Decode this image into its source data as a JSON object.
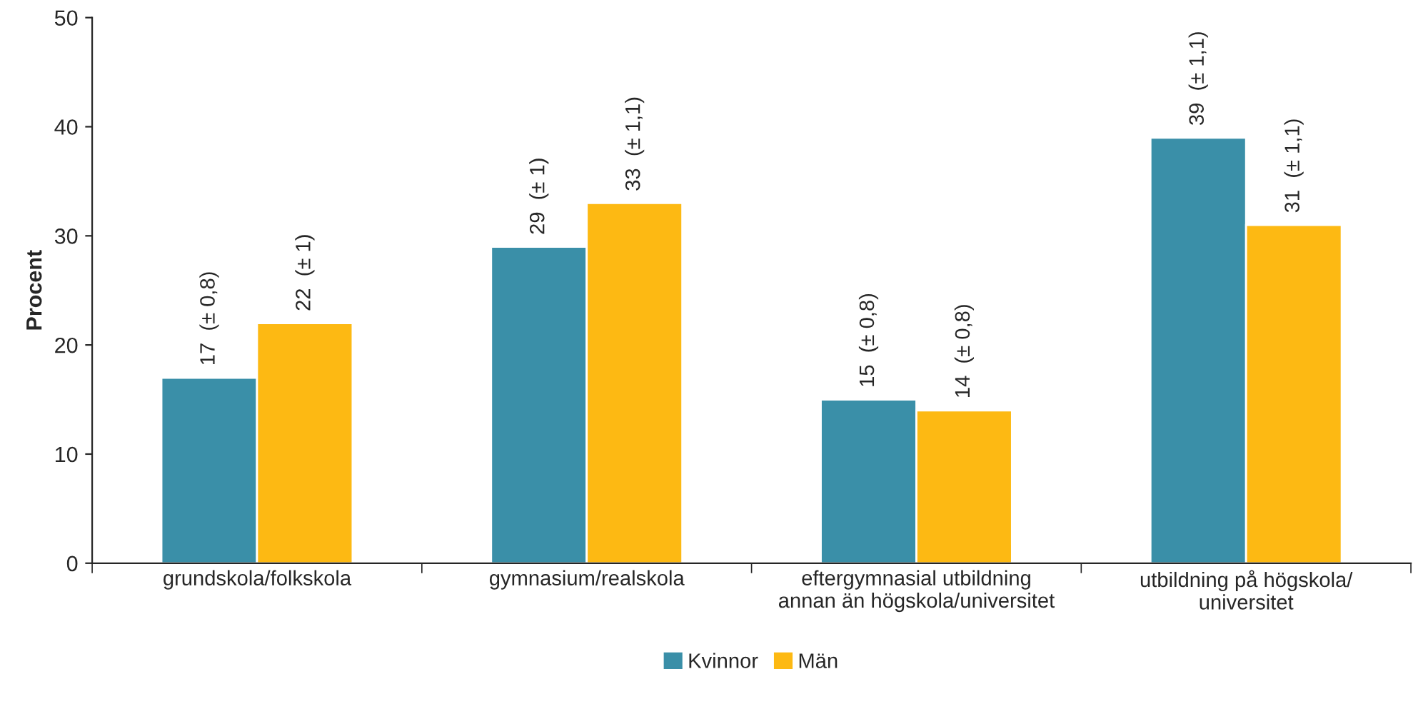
{
  "chart_data": {
    "type": "bar",
    "ylabel": "Procent",
    "categories": [
      "grundskola/folkskola",
      "gymnasium/realskola",
      "eftergymnasial utbildning\nannan än högskola/universitet",
      "utbildning på högskola/\nuniversitet"
    ],
    "series": [
      {
        "name": "Kvinnor",
        "color": "#3a8fa8",
        "values": [
          17,
          29,
          15,
          39
        ],
        "value_labels": [
          "17  (± 0,8)",
          "29  (± 1)",
          "15  (± 0,8)",
          "39  (± 1,1)"
        ]
      },
      {
        "name": "Män",
        "color": "#fdb913",
        "values": [
          22,
          33,
          14,
          31
        ],
        "value_labels": [
          "22  (± 1)",
          "33  (± 1,1)",
          "14  (± 0,8)",
          "31  (± 1,1)"
        ]
      }
    ],
    "ylim": [
      0,
      50
    ],
    "yticks": [
      0,
      10,
      20,
      30,
      40,
      50
    ],
    "grid": false,
    "legend": "bottom"
  }
}
